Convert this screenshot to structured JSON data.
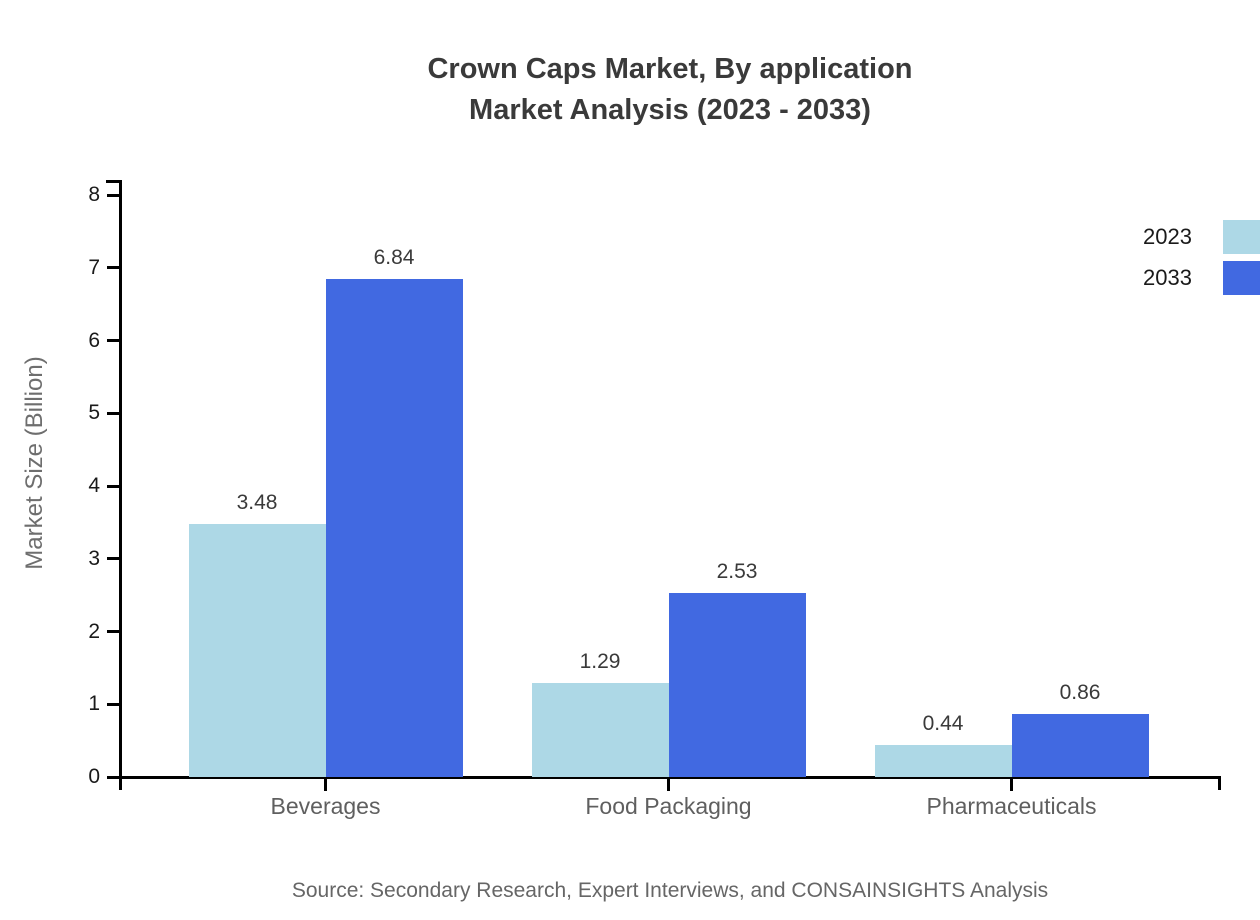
{
  "title": {
    "line1": "Crown Caps Market, By application",
    "line2": "Market Analysis (2023 - 2033)"
  },
  "source": "Source: Secondary Research, Expert Interviews, and CONSAINSIGHTS Analysis",
  "chart_data": {
    "type": "bar",
    "title": "Crown Caps Market, By application",
    "subtitle": "Market Analysis (2023 - 2033)",
    "categories": [
      "Beverages",
      "Food Packaging",
      "Pharmaceuticals"
    ],
    "series": [
      {
        "name": "2023",
        "color": "#ADD8E6",
        "values": [
          3.48,
          1.29,
          0.44
        ]
      },
      {
        "name": "2033",
        "color": "#4169E1",
        "values": [
          6.84,
          2.53,
          0.86
        ]
      }
    ],
    "value_labels": [
      "3.48",
      "6.84",
      "1.29",
      "2.53",
      "0.44",
      "0.86"
    ],
    "xlabel": "",
    "ylabel": "Market Size (Billion)",
    "ylim": [
      0,
      8
    ],
    "yticks": [
      0,
      1,
      2,
      3,
      4,
      5,
      6,
      7,
      8
    ],
    "grid": false,
    "legend_position": "outside-top-right",
    "axis_color": "#000000"
  }
}
